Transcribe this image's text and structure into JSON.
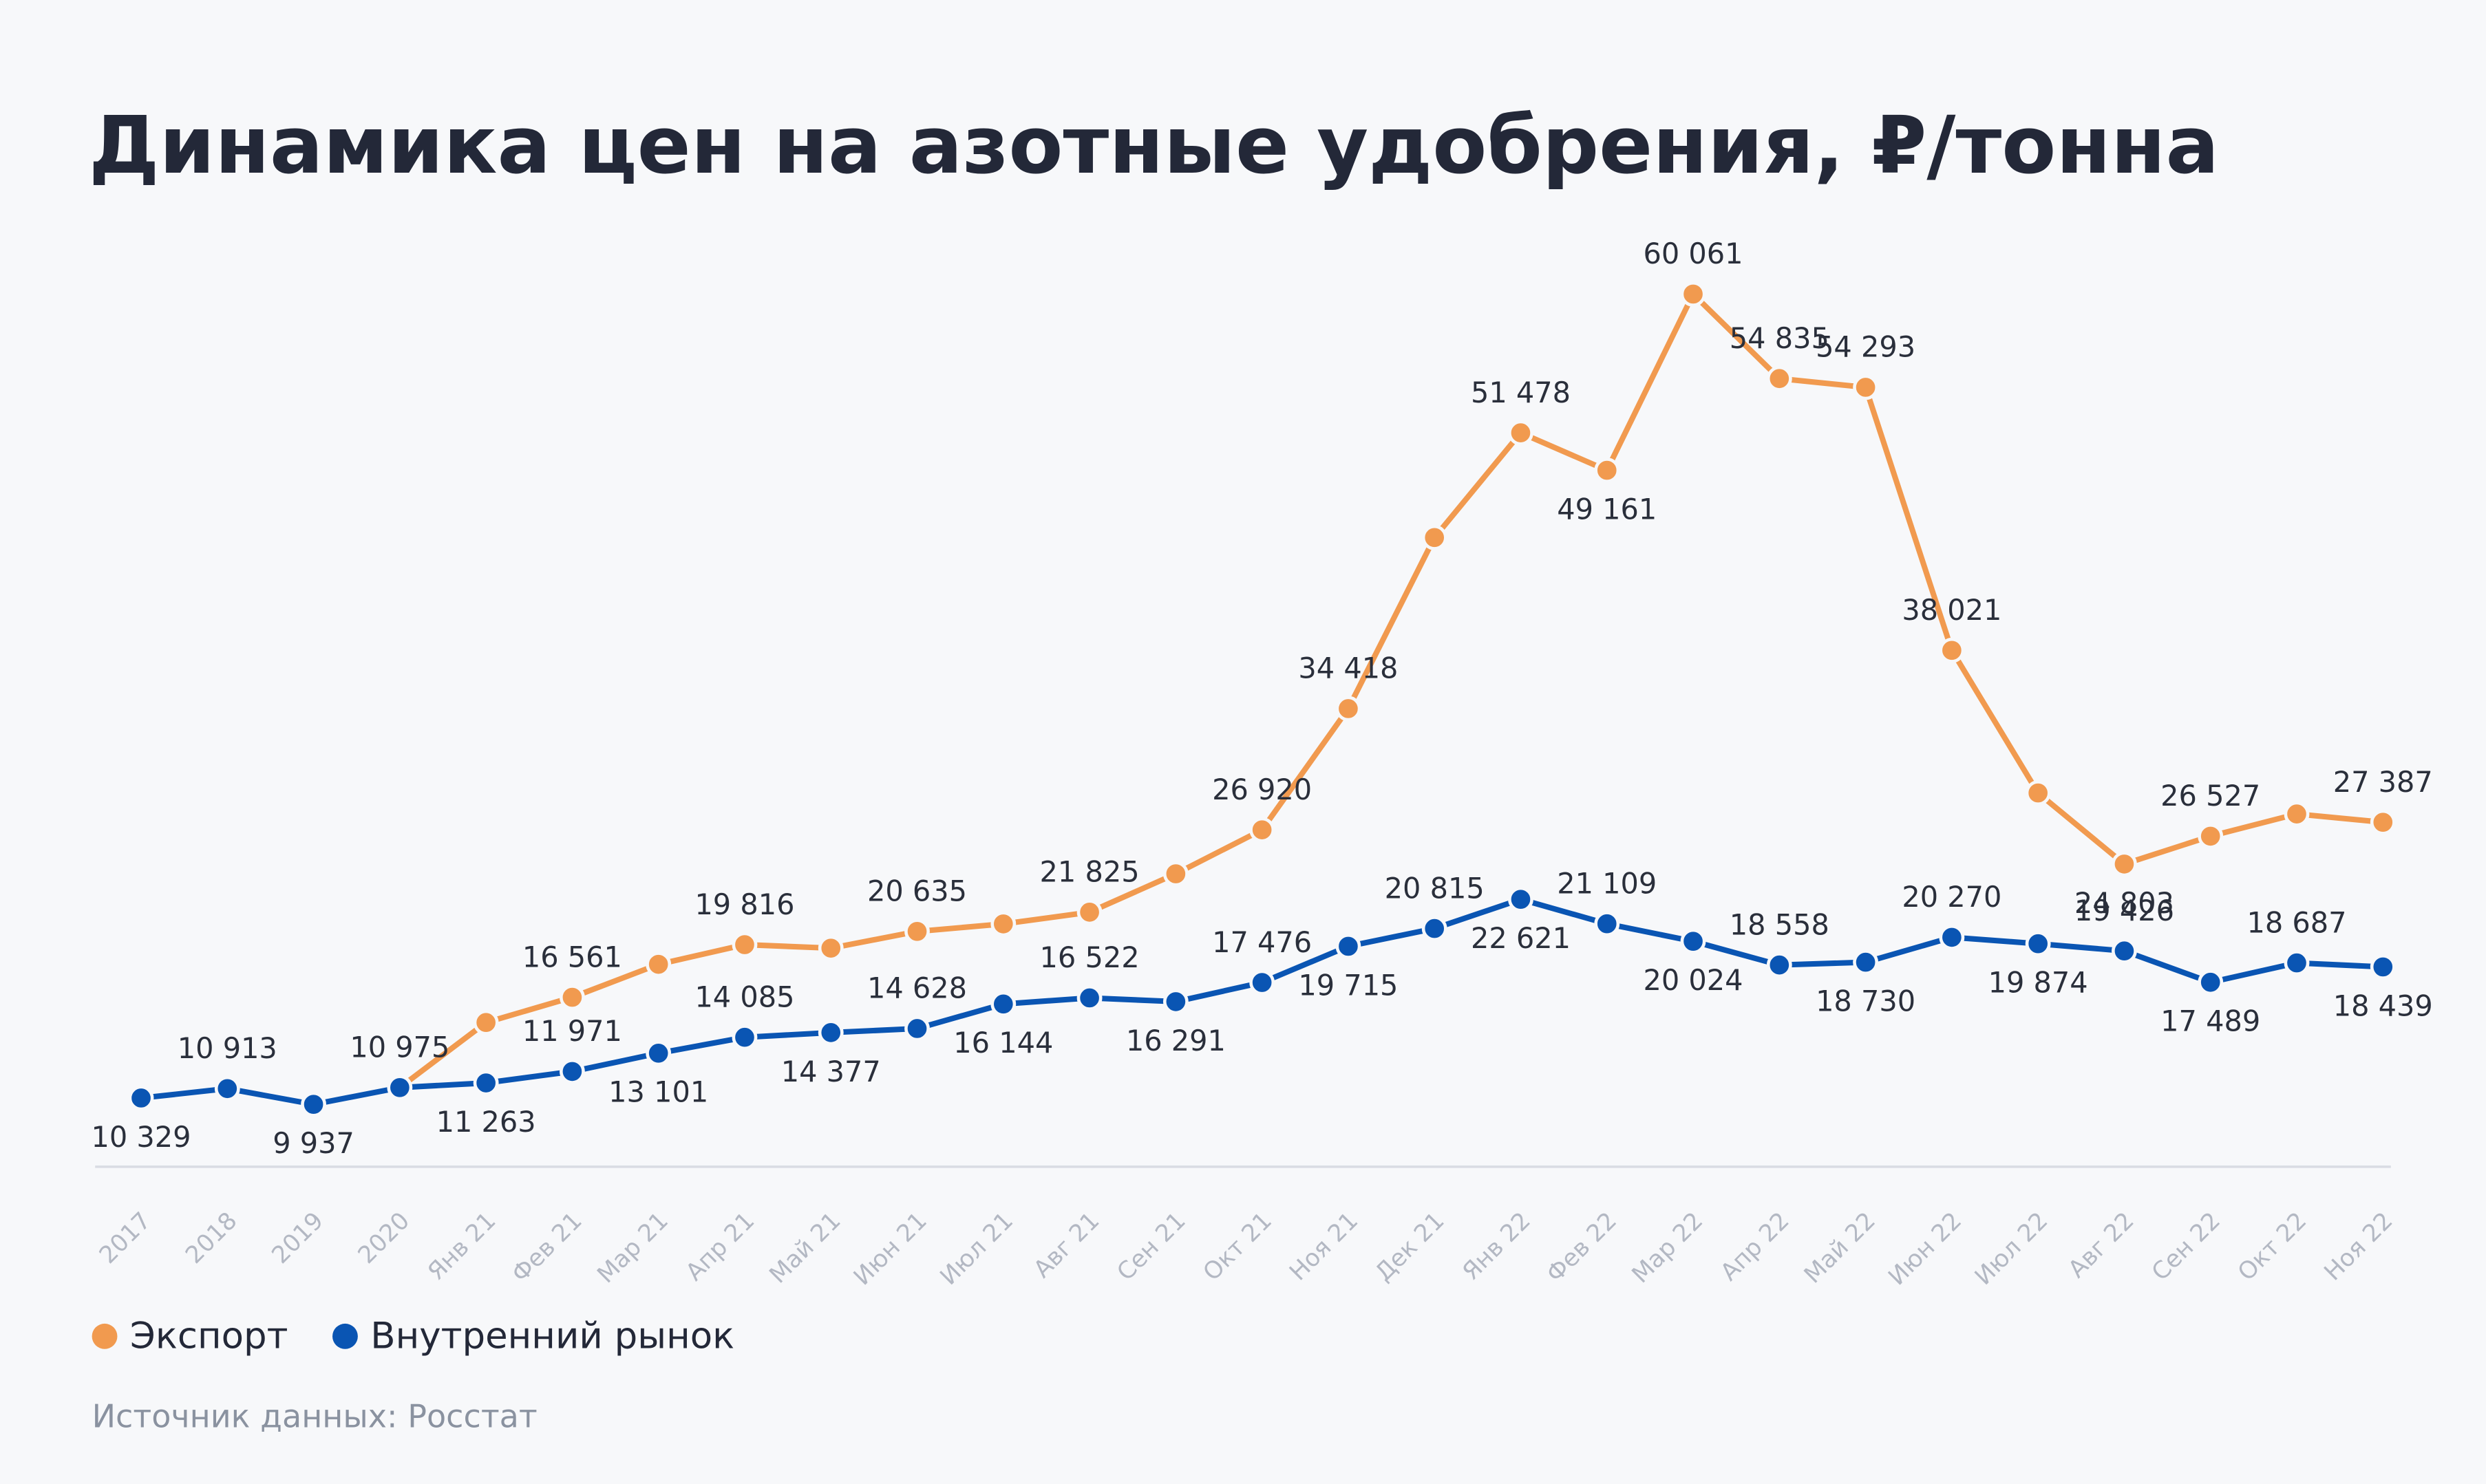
{
  "chart_data": {
    "type": "line",
    "title": "Динамика цен на азотные удобрения, ₽/тонна",
    "source": "Источник данных: Росстат",
    "categories": [
      "2017",
      "2018",
      "2019",
      "2020",
      "Янв 21",
      "Фев 21",
      "Мар 21",
      "Апр 21",
      "Май 21",
      "Июн 21",
      "Июл 21",
      "Авг 21",
      "Сен 21",
      "Окт 21",
      "Ноя 21",
      "Дек 21",
      "Янв 22",
      "Фев 22",
      "Мар 22",
      "Апр 22",
      "Май 22",
      "Июн 22",
      "Июл 22",
      "Авг 22",
      "Сен 22",
      "Окт 22",
      "Ноя 22"
    ],
    "ylim": [
      0,
      60000
    ],
    "series": [
      {
        "name": "Экспорт",
        "color": "#f19a4f",
        "values": [
          null,
          null,
          null,
          10975,
          15000,
          16561,
          18600,
          19816,
          19600,
          20635,
          21100,
          21825,
          24200,
          26920,
          34418,
          45000,
          51478,
          49161,
          60061,
          54835,
          54293,
          38021,
          29200,
          24803,
          26527,
          27900,
          27387
        ],
        "value_labels": [
          null,
          null,
          null,
          null,
          null,
          "16 561",
          null,
          "19 816",
          null,
          "20 635",
          null,
          "21 825",
          null,
          "26 920",
          "34 418",
          null,
          "51 478",
          "49 161",
          "60 061",
          "54 835",
          "54 293",
          "38 021",
          null,
          "24 803",
          "26 527",
          null,
          "27 387"
        ]
      },
      {
        "name": "Внутренний рынок",
        "color": "#0a55b3",
        "values": [
          10329,
          10913,
          9937,
          10975,
          11263,
          11971,
          13101,
          14085,
          14377,
          14628,
          16144,
          16522,
          16291,
          17476,
          19715,
          20815,
          22621,
          21109,
          20024,
          18558,
          18730,
          20270,
          19874,
          19426,
          17489,
          18687,
          18439
        ],
        "value_labels": [
          "10 329",
          "10 913",
          "9 937",
          "10 975",
          "11 263",
          "11 971",
          "13 101",
          "14 085",
          "14 377",
          "14 628",
          "16 144",
          "16 522",
          "16 291",
          "17 476",
          "19 715",
          "20 815",
          "22 621",
          "21 109",
          "20 024",
          "18 558",
          "18 730",
          "20 270",
          "19 874",
          "19 426",
          "17 489",
          "18 687",
          "18 439"
        ]
      }
    ]
  }
}
